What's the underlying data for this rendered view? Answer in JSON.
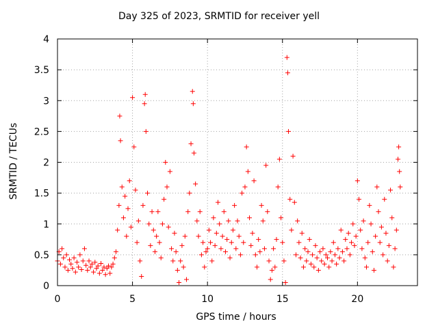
{
  "chart_data": {
    "type": "scatter",
    "title": "Day 325 of 2023, SRMTID for receiver yell",
    "xlabel": "GPS time / hours",
    "ylabel": "SRMTID / TECUs",
    "xlim": [
      0,
      24
    ],
    "ylim": [
      0,
      4
    ],
    "xticks": [
      0,
      5,
      10,
      15,
      20
    ],
    "xtick_labels": [
      "0",
      "5",
      "10",
      "15",
      "20"
    ],
    "yticks": [
      0,
      0.5,
      1,
      1.5,
      2,
      2.5,
      3,
      3.5,
      4
    ],
    "ytick_labels": [
      "0",
      "0.5",
      "1",
      "1.5",
      "2",
      "2.5",
      "3",
      "3.5",
      "4"
    ],
    "grid": true,
    "marker": "+",
    "color": "#ff0000",
    "series": [
      {
        "name": "SRMTID",
        "points": [
          [
            0.0,
            0.4
          ],
          [
            0.1,
            0.55
          ],
          [
            0.2,
            0.35
          ],
          [
            0.3,
            0.6
          ],
          [
            0.4,
            0.45
          ],
          [
            0.5,
            0.3
          ],
          [
            0.6,
            0.5
          ],
          [
            0.7,
            0.25
          ],
          [
            0.8,
            0.42
          ],
          [
            0.9,
            0.35
          ],
          [
            1.0,
            0.28
          ],
          [
            1.1,
            0.45
          ],
          [
            1.2,
            0.22
          ],
          [
            1.3,
            0.38
          ],
          [
            1.4,
            0.3
          ],
          [
            1.5,
            0.5
          ],
          [
            1.6,
            0.26
          ],
          [
            1.7,
            0.4
          ],
          [
            1.8,
            0.6
          ],
          [
            1.9,
            0.33
          ],
          [
            2.0,
            0.25
          ],
          [
            2.1,
            0.4
          ],
          [
            2.2,
            0.3
          ],
          [
            2.3,
            0.35
          ],
          [
            2.4,
            0.22
          ],
          [
            2.5,
            0.38
          ],
          [
            2.6,
            0.28
          ],
          [
            2.7,
            0.32
          ],
          [
            2.8,
            0.2
          ],
          [
            2.9,
            0.36
          ],
          [
            3.0,
            0.25
          ],
          [
            3.1,
            0.3
          ],
          [
            3.2,
            0.18
          ],
          [
            3.3,
            0.28
          ],
          [
            3.4,
            0.32
          ],
          [
            3.5,
            0.2
          ],
          [
            3.6,
            0.3
          ],
          [
            3.7,
            0.35
          ],
          [
            3.8,
            0.45
          ],
          [
            3.9,
            0.55
          ],
          [
            4.0,
            0.9
          ],
          [
            4.1,
            1.3
          ],
          [
            4.15,
            2.75
          ],
          [
            4.2,
            2.35
          ],
          [
            4.3,
            1.6
          ],
          [
            4.4,
            1.1
          ],
          [
            4.5,
            1.45
          ],
          [
            4.6,
            0.8
          ],
          [
            4.7,
            1.25
          ],
          [
            4.8,
            1.7
          ],
          [
            4.9,
            0.95
          ],
          [
            5.0,
            3.05
          ],
          [
            5.1,
            2.25
          ],
          [
            5.2,
            1.55
          ],
          [
            5.3,
            0.7
          ],
          [
            5.4,
            1.05
          ],
          [
            5.5,
            0.4
          ],
          [
            5.6,
            0.15
          ],
          [
            5.7,
            1.3
          ],
          [
            5.8,
            2.95
          ],
          [
            5.85,
            3.1
          ],
          [
            5.9,
            2.5
          ],
          [
            6.0,
            1.5
          ],
          [
            6.1,
            1.0
          ],
          [
            6.2,
            0.65
          ],
          [
            6.3,
            1.2
          ],
          [
            6.4,
            0.9
          ],
          [
            6.5,
            0.55
          ],
          [
            6.6,
            0.8
          ],
          [
            6.7,
            1.2
          ],
          [
            6.8,
            0.7
          ],
          [
            6.9,
            0.45
          ],
          [
            7.0,
            1.0
          ],
          [
            7.1,
            1.4
          ],
          [
            7.2,
            2.0
          ],
          [
            7.3,
            1.6
          ],
          [
            7.4,
            0.95
          ],
          [
            7.5,
            1.85
          ],
          [
            7.6,
            0.6
          ],
          [
            7.7,
            0.4
          ],
          [
            7.8,
            0.85
          ],
          [
            7.9,
            0.55
          ],
          [
            8.0,
            0.25
          ],
          [
            8.1,
            0.05
          ],
          [
            8.2,
            0.4
          ],
          [
            8.3,
            0.65
          ],
          [
            8.4,
            0.3
          ],
          [
            8.5,
            0.8
          ],
          [
            8.6,
            0.1
          ],
          [
            8.7,
            1.2
          ],
          [
            8.8,
            1.5
          ],
          [
            8.9,
            2.3
          ],
          [
            9.0,
            3.15
          ],
          [
            9.05,
            2.95
          ],
          [
            9.1,
            2.15
          ],
          [
            9.2,
            1.65
          ],
          [
            9.3,
            1.05
          ],
          [
            9.4,
            0.8
          ],
          [
            9.5,
            1.2
          ],
          [
            9.6,
            0.5
          ],
          [
            9.7,
            0.7
          ],
          [
            9.8,
            0.3
          ],
          [
            9.9,
            0.55
          ],
          [
            10.0,
            0.6
          ],
          [
            10.1,
            0.9
          ],
          [
            10.2,
            0.7
          ],
          [
            10.3,
            0.4
          ],
          [
            10.4,
            1.1
          ],
          [
            10.5,
            0.65
          ],
          [
            10.6,
            0.85
          ],
          [
            10.7,
            1.35
          ],
          [
            10.8,
            1.0
          ],
          [
            10.9,
            0.6
          ],
          [
            11.0,
            0.8
          ],
          [
            11.1,
            1.2
          ],
          [
            11.2,
            0.55
          ],
          [
            11.3,
            0.75
          ],
          [
            11.4,
            1.05
          ],
          [
            11.5,
            0.45
          ],
          [
            11.6,
            0.7
          ],
          [
            11.7,
            0.9
          ],
          [
            11.8,
            1.3
          ],
          [
            11.9,
            0.6
          ],
          [
            12.0,
            1.05
          ],
          [
            12.1,
            0.8
          ],
          [
            12.2,
            0.5
          ],
          [
            12.3,
            1.5
          ],
          [
            12.4,
            0.7
          ],
          [
            12.5,
            1.6
          ],
          [
            12.6,
            2.25
          ],
          [
            12.7,
            1.85
          ],
          [
            12.8,
            1.1
          ],
          [
            12.9,
            0.65
          ],
          [
            13.0,
            0.85
          ],
          [
            13.1,
            1.7
          ],
          [
            13.2,
            0.5
          ],
          [
            13.3,
            0.3
          ],
          [
            13.4,
            0.75
          ],
          [
            13.5,
            0.55
          ],
          [
            13.6,
            1.3
          ],
          [
            13.7,
            1.05
          ],
          [
            13.8,
            0.6
          ],
          [
            13.9,
            1.95
          ],
          [
            14.0,
            1.2
          ],
          [
            14.1,
            0.4
          ],
          [
            14.2,
            0.1
          ],
          [
            14.3,
            0.25
          ],
          [
            14.4,
            0.6
          ],
          [
            14.5,
            0.3
          ],
          [
            14.6,
            0.75
          ],
          [
            14.7,
            1.6
          ],
          [
            14.8,
            2.05
          ],
          [
            14.9,
            1.1
          ],
          [
            15.0,
            0.7
          ],
          [
            15.1,
            0.4
          ],
          [
            15.2,
            0.05
          ],
          [
            15.3,
            3.7
          ],
          [
            15.35,
            3.45
          ],
          [
            15.4,
            2.5
          ],
          [
            15.5,
            1.4
          ],
          [
            15.6,
            0.9
          ],
          [
            15.7,
            2.1
          ],
          [
            15.8,
            1.35
          ],
          [
            15.9,
            0.5
          ],
          [
            16.0,
            1.05
          ],
          [
            16.1,
            0.7
          ],
          [
            16.2,
            0.45
          ],
          [
            16.3,
            0.85
          ],
          [
            16.4,
            0.3
          ],
          [
            16.5,
            0.6
          ],
          [
            16.6,
            0.4
          ],
          [
            16.7,
            0.55
          ],
          [
            16.8,
            0.75
          ],
          [
            16.9,
            0.35
          ],
          [
            17.0,
            0.5
          ],
          [
            17.1,
            0.3
          ],
          [
            17.2,
            0.65
          ],
          [
            17.3,
            0.45
          ],
          [
            17.4,
            0.25
          ],
          [
            17.5,
            0.55
          ],
          [
            17.6,
            0.4
          ],
          [
            17.7,
            0.6
          ],
          [
            17.8,
            0.35
          ],
          [
            17.9,
            0.5
          ],
          [
            18.0,
            0.45
          ],
          [
            18.1,
            0.3
          ],
          [
            18.2,
            0.55
          ],
          [
            18.3,
            0.4
          ],
          [
            18.4,
            0.7
          ],
          [
            18.5,
            0.5
          ],
          [
            18.6,
            0.35
          ],
          [
            18.7,
            0.6
          ],
          [
            18.8,
            0.45
          ],
          [
            18.9,
            0.9
          ],
          [
            19.0,
            0.55
          ],
          [
            19.1,
            0.4
          ],
          [
            19.2,
            0.75
          ],
          [
            19.3,
            0.6
          ],
          [
            19.4,
            0.85
          ],
          [
            19.5,
            0.5
          ],
          [
            19.6,
            0.7
          ],
          [
            19.7,
            1.0
          ],
          [
            19.8,
            0.65
          ],
          [
            19.9,
            0.8
          ],
          [
            20.0,
            1.7
          ],
          [
            20.1,
            1.4
          ],
          [
            20.2,
            0.9
          ],
          [
            20.3,
            0.6
          ],
          [
            20.4,
            1.05
          ],
          [
            20.5,
            0.45
          ],
          [
            20.6,
            0.3
          ],
          [
            20.7,
            0.7
          ],
          [
            20.8,
            1.3
          ],
          [
            20.9,
            1.0
          ],
          [
            21.0,
            0.55
          ],
          [
            21.1,
            0.25
          ],
          [
            21.2,
            0.8
          ],
          [
            21.3,
            1.6
          ],
          [
            21.4,
            1.2
          ],
          [
            21.5,
            0.7
          ],
          [
            21.6,
            0.95
          ],
          [
            21.7,
            0.5
          ],
          [
            21.8,
            1.4
          ],
          [
            21.9,
            0.85
          ],
          [
            22.0,
            0.4
          ],
          [
            22.1,
            0.65
          ],
          [
            22.2,
            1.55
          ],
          [
            22.3,
            1.1
          ],
          [
            22.4,
            0.3
          ],
          [
            22.5,
            0.6
          ],
          [
            22.6,
            0.9
          ],
          [
            22.7,
            2.05
          ],
          [
            22.75,
            2.25
          ],
          [
            22.8,
            1.85
          ],
          [
            22.85,
            1.6
          ]
        ]
      }
    ]
  }
}
